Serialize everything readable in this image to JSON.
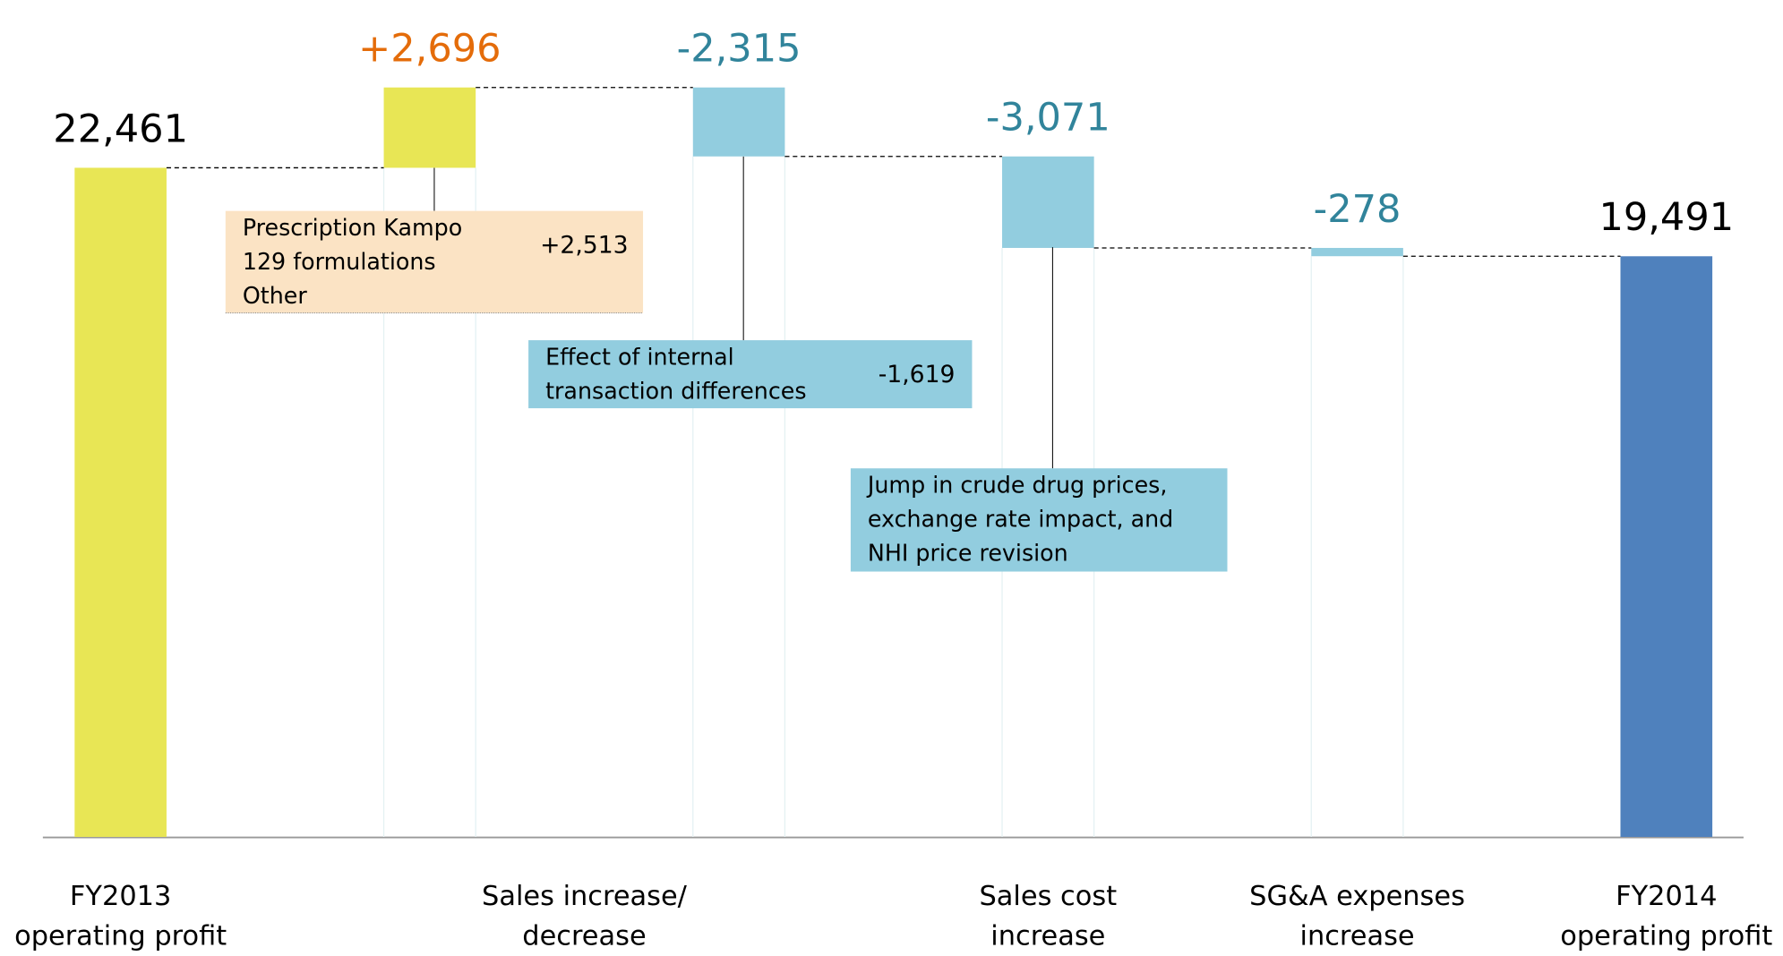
{
  "chart_data": {
    "type": "waterfall",
    "categories": [
      [
        "FY2013",
        "operating profit"
      ],
      [
        "Sales increase/",
        "decrease"
      ],
      null,
      [
        "Sales cost",
        "increase"
      ],
      [
        "SG&A expenses",
        "increase"
      ],
      [
        "FY2014",
        "operating profit"
      ]
    ],
    "values": [
      22461,
      2696,
      -2315,
      -3071,
      -278,
      19491
    ],
    "value_labels": [
      "22,461",
      "+2,696",
      "-2,315",
      "-3,071",
      "-278",
      "19,491"
    ],
    "totals": [
      true,
      false,
      false,
      false,
      false,
      true
    ],
    "colors": [
      "#e8e655",
      "#e8e655",
      "#92cddf",
      "#92cddf",
      "#92cddf",
      "#4f81bd"
    ],
    "label_colors": [
      "#000000",
      "#e46c0a",
      "#31849b",
      "#31849b",
      "#31849b",
      "#000000"
    ],
    "annotations": [
      {
        "lines": [
          "Prescription Kampo",
          "129 formulations",
          "Other"
        ],
        "value": 2513,
        "value_label": "+2,513",
        "color": "#fbe3c4"
      },
      {
        "lines": [
          "Effect of internal",
          "transaction differences"
        ],
        "value": -1619,
        "value_label": "-1,619",
        "color": "#92cddf"
      },
      {
        "lines": [
          "Jump in crude drug prices,",
          "exchange rate impact, and",
          "NHI price revision"
        ],
        "color": "#92cddf"
      }
    ]
  }
}
